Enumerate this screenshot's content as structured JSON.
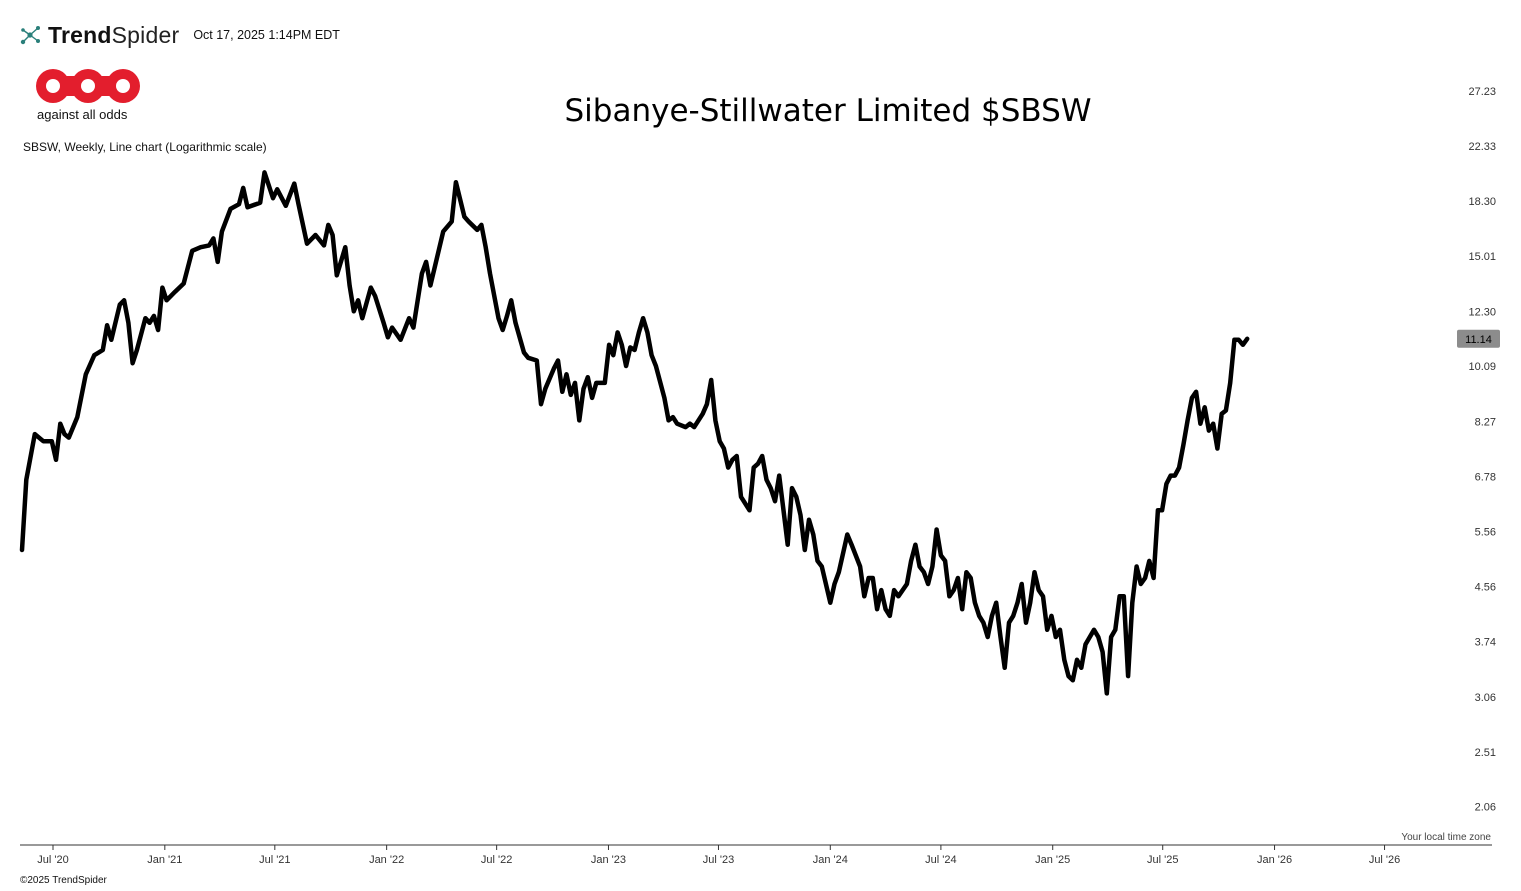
{
  "header": {
    "brand_bold": "Trend",
    "brand_light": "Spider",
    "timestamp": "Oct 17, 2025 1:14PM EDT"
  },
  "logo": {
    "tagline": "against all odds"
  },
  "chart_desc": "SBSW, Weekly, Line chart (Logarithmic scale)",
  "timezone_note": "Your local time zone",
  "copyright": "©2025 TrendSpider",
  "colors": {
    "line": "#000000",
    "price_tag": "#8c8c8c",
    "logo_red": "#e31e2d"
  },
  "chart_data": {
    "type": "line",
    "title": "Sibanye-Stillwater Limited $SBSW",
    "yscale": "log",
    "ylim": [
      1.9,
      28
    ],
    "y_ticks": [
      "27.23",
      "22.33",
      "18.30",
      "15.01",
      "12.30",
      "10.09",
      "8.27",
      "6.78",
      "5.56",
      "4.56",
      "3.74",
      "3.06",
      "2.51",
      "2.06"
    ],
    "x_range": [
      "2020-05-11",
      "2026-09-01"
    ],
    "x_ticks": [
      {
        "label": "Jul '20",
        "date": "2020-07-01"
      },
      {
        "label": "Jan '21",
        "date": "2021-01-01"
      },
      {
        "label": "Jul '21",
        "date": "2021-07-01"
      },
      {
        "label": "Jan '22",
        "date": "2022-01-01"
      },
      {
        "label": "Jul '22",
        "date": "2022-07-01"
      },
      {
        "label": "Jan '23",
        "date": "2023-01-01"
      },
      {
        "label": "Jul '23",
        "date": "2023-07-01"
      },
      {
        "label": "Jan '24",
        "date": "2024-01-01"
      },
      {
        "label": "Jul '24",
        "date": "2024-07-01"
      },
      {
        "label": "Jan '25",
        "date": "2025-01-01"
      },
      {
        "label": "Jul '25",
        "date": "2025-07-01"
      },
      {
        "label": "Jan '26",
        "date": "2026-01-01"
      },
      {
        "label": "Jul '26",
        "date": "2026-07-01"
      }
    ],
    "last_price": "11.14",
    "series": [
      {
        "points": [
          [
            "2020-05-11",
            5.2
          ],
          [
            "2020-05-18",
            6.7
          ],
          [
            "2020-06-01",
            7.9
          ],
          [
            "2020-06-15",
            7.7
          ],
          [
            "2020-06-29",
            7.7
          ],
          [
            "2020-07-06",
            7.2
          ],
          [
            "2020-07-13",
            8.2
          ],
          [
            "2020-07-20",
            7.9
          ],
          [
            "2020-07-27",
            7.8
          ],
          [
            "2020-08-10",
            8.4
          ],
          [
            "2020-08-24",
            9.8
          ],
          [
            "2020-09-07",
            10.5
          ],
          [
            "2020-09-21",
            10.7
          ],
          [
            "2020-09-28",
            11.7
          ],
          [
            "2020-10-05",
            11.1
          ],
          [
            "2020-10-19",
            12.6
          ],
          [
            "2020-10-26",
            12.8
          ],
          [
            "2020-11-02",
            11.8
          ],
          [
            "2020-11-09",
            10.2
          ],
          [
            "2020-11-16",
            10.7
          ],
          [
            "2020-11-30",
            12.0
          ],
          [
            "2020-12-07",
            11.8
          ],
          [
            "2020-12-14",
            12.1
          ],
          [
            "2020-12-21",
            11.5
          ],
          [
            "2020-12-28",
            13.4
          ],
          [
            "2021-01-04",
            12.8
          ],
          [
            "2021-01-18",
            13.2
          ],
          [
            "2021-02-01",
            13.6
          ],
          [
            "2021-02-15",
            15.3
          ],
          [
            "2021-03-01",
            15.5
          ],
          [
            "2021-03-15",
            15.6
          ],
          [
            "2021-03-22",
            16.0
          ],
          [
            "2021-03-29",
            14.7
          ],
          [
            "2021-04-05",
            16.4
          ],
          [
            "2021-04-19",
            17.8
          ],
          [
            "2021-05-03",
            18.1
          ],
          [
            "2021-05-10",
            19.2
          ],
          [
            "2021-05-17",
            17.9
          ],
          [
            "2021-05-31",
            18.1
          ],
          [
            "2021-06-07",
            18.2
          ],
          [
            "2021-06-14",
            20.3
          ],
          [
            "2021-06-28",
            18.5
          ],
          [
            "2021-07-05",
            19.1
          ],
          [
            "2021-07-19",
            18.0
          ],
          [
            "2021-08-02",
            19.5
          ],
          [
            "2021-08-09",
            18.1
          ],
          [
            "2021-08-23",
            15.7
          ],
          [
            "2021-09-06",
            16.2
          ],
          [
            "2021-09-20",
            15.6
          ],
          [
            "2021-09-27",
            16.8
          ],
          [
            "2021-10-04",
            16.2
          ],
          [
            "2021-10-11",
            14.0
          ],
          [
            "2021-10-25",
            15.5
          ],
          [
            "2021-11-01",
            13.5
          ],
          [
            "2021-11-08",
            12.3
          ],
          [
            "2021-11-15",
            12.8
          ],
          [
            "2021-11-22",
            12.0
          ],
          [
            "2021-12-06",
            13.4
          ],
          [
            "2021-12-13",
            13.0
          ],
          [
            "2021-12-27",
            11.8
          ],
          [
            "2022-01-03",
            11.2
          ],
          [
            "2022-01-10",
            11.6
          ],
          [
            "2022-01-24",
            11.1
          ],
          [
            "2022-02-07",
            12.0
          ],
          [
            "2022-02-14",
            11.6
          ],
          [
            "2022-02-28",
            14.1
          ],
          [
            "2022-03-07",
            14.7
          ],
          [
            "2022-03-14",
            13.5
          ],
          [
            "2022-04-04",
            16.4
          ],
          [
            "2022-04-18",
            17.0
          ],
          [
            "2022-04-25",
            19.6
          ],
          [
            "2022-05-09",
            17.3
          ],
          [
            "2022-05-16",
            17.0
          ],
          [
            "2022-05-30",
            16.5
          ],
          [
            "2022-06-06",
            16.8
          ],
          [
            "2022-06-13",
            15.5
          ],
          [
            "2022-06-20",
            14.1
          ],
          [
            "2022-07-04",
            12.0
          ],
          [
            "2022-07-11",
            11.5
          ],
          [
            "2022-07-18",
            12.1
          ],
          [
            "2022-07-25",
            12.8
          ],
          [
            "2022-08-01",
            11.8
          ],
          [
            "2022-08-15",
            10.6
          ],
          [
            "2022-08-22",
            10.4
          ],
          [
            "2022-09-05",
            10.3
          ],
          [
            "2022-09-12",
            8.8
          ],
          [
            "2022-09-19",
            9.3
          ],
          [
            "2022-10-03",
            10.0
          ],
          [
            "2022-10-10",
            10.3
          ],
          [
            "2022-10-17",
            9.2
          ],
          [
            "2022-10-24",
            9.8
          ],
          [
            "2022-10-31",
            9.1
          ],
          [
            "2022-11-07",
            9.5
          ],
          [
            "2022-11-14",
            8.3
          ],
          [
            "2022-11-21",
            9.3
          ],
          [
            "2022-11-28",
            9.7
          ],
          [
            "2022-12-05",
            9.0
          ],
          [
            "2022-12-12",
            9.5
          ],
          [
            "2022-12-26",
            9.5
          ],
          [
            "2023-01-02",
            10.9
          ],
          [
            "2023-01-09",
            10.5
          ],
          [
            "2023-01-16",
            11.4
          ],
          [
            "2023-01-23",
            10.9
          ],
          [
            "2023-01-30",
            10.1
          ],
          [
            "2023-02-06",
            10.8
          ],
          [
            "2023-02-13",
            10.7
          ],
          [
            "2023-02-20",
            11.4
          ],
          [
            "2023-02-27",
            12.0
          ],
          [
            "2023-03-06",
            11.4
          ],
          [
            "2023-03-13",
            10.5
          ],
          [
            "2023-03-20",
            10.1
          ],
          [
            "2023-04-03",
            9.0
          ],
          [
            "2023-04-10",
            8.3
          ],
          [
            "2023-04-17",
            8.4
          ],
          [
            "2023-04-24",
            8.2
          ],
          [
            "2023-05-08",
            8.1
          ],
          [
            "2023-05-15",
            8.2
          ],
          [
            "2023-05-22",
            8.1
          ],
          [
            "2023-06-05",
            8.5
          ],
          [
            "2023-06-12",
            8.8
          ],
          [
            "2023-06-19",
            9.6
          ],
          [
            "2023-06-26",
            8.3
          ],
          [
            "2023-07-03",
            7.7
          ],
          [
            "2023-07-10",
            7.5
          ],
          [
            "2023-07-17",
            7.0
          ],
          [
            "2023-07-24",
            7.2
          ],
          [
            "2023-07-31",
            7.3
          ],
          [
            "2023-08-07",
            6.3
          ],
          [
            "2023-08-21",
            6.0
          ],
          [
            "2023-08-28",
            7.0
          ],
          [
            "2023-09-04",
            7.1
          ],
          [
            "2023-09-11",
            7.3
          ],
          [
            "2023-09-18",
            6.7
          ],
          [
            "2023-09-25",
            6.5
          ],
          [
            "2023-10-02",
            6.2
          ],
          [
            "2023-10-09",
            6.8
          ],
          [
            "2023-10-16",
            6.0
          ],
          [
            "2023-10-23",
            5.3
          ],
          [
            "2023-10-30",
            6.5
          ],
          [
            "2023-11-06",
            6.3
          ],
          [
            "2023-11-13",
            5.9
          ],
          [
            "2023-11-20",
            5.2
          ],
          [
            "2023-11-27",
            5.8
          ],
          [
            "2023-12-04",
            5.5
          ],
          [
            "2023-12-11",
            5.0
          ],
          [
            "2023-12-18",
            4.9
          ],
          [
            "2024-01-01",
            4.3
          ],
          [
            "2024-01-08",
            4.6
          ],
          [
            "2024-01-15",
            4.8
          ],
          [
            "2024-01-29",
            5.5
          ],
          [
            "2024-02-05",
            5.3
          ],
          [
            "2024-02-19",
            4.9
          ],
          [
            "2024-02-26",
            4.4
          ],
          [
            "2024-03-04",
            4.7
          ],
          [
            "2024-03-11",
            4.7
          ],
          [
            "2024-03-18",
            4.2
          ],
          [
            "2024-03-25",
            4.5
          ],
          [
            "2024-04-01",
            4.2
          ],
          [
            "2024-04-08",
            4.1
          ],
          [
            "2024-04-15",
            4.5
          ],
          [
            "2024-04-22",
            4.4
          ],
          [
            "2024-05-06",
            4.6
          ],
          [
            "2024-05-13",
            5.0
          ],
          [
            "2024-05-20",
            5.3
          ],
          [
            "2024-05-27",
            4.9
          ],
          [
            "2024-06-03",
            4.8
          ],
          [
            "2024-06-10",
            4.6
          ],
          [
            "2024-06-17",
            4.9
          ],
          [
            "2024-06-24",
            5.6
          ],
          [
            "2024-07-01",
            5.1
          ],
          [
            "2024-07-08",
            5.0
          ],
          [
            "2024-07-15",
            4.4
          ],
          [
            "2024-07-22",
            4.5
          ],
          [
            "2024-07-29",
            4.7
          ],
          [
            "2024-08-05",
            4.2
          ],
          [
            "2024-08-12",
            4.8
          ],
          [
            "2024-08-19",
            4.7
          ],
          [
            "2024-08-26",
            4.3
          ],
          [
            "2024-09-02",
            4.1
          ],
          [
            "2024-09-09",
            4.0
          ],
          [
            "2024-09-16",
            3.8
          ],
          [
            "2024-09-23",
            4.1
          ],
          [
            "2024-09-30",
            4.3
          ],
          [
            "2024-10-07",
            3.8
          ],
          [
            "2024-10-14",
            3.4
          ],
          [
            "2024-10-21",
            4.0
          ],
          [
            "2024-10-28",
            4.1
          ],
          [
            "2024-11-04",
            4.3
          ],
          [
            "2024-11-11",
            4.6
          ],
          [
            "2024-11-18",
            4.0
          ],
          [
            "2024-11-25",
            4.3
          ],
          [
            "2024-12-02",
            4.8
          ],
          [
            "2024-12-09",
            4.5
          ],
          [
            "2024-12-16",
            4.4
          ],
          [
            "2024-12-23",
            3.9
          ],
          [
            "2024-12-30",
            4.1
          ],
          [
            "2025-01-06",
            3.8
          ],
          [
            "2025-01-13",
            3.9
          ],
          [
            "2025-01-20",
            3.5
          ],
          [
            "2025-01-27",
            3.3
          ],
          [
            "2025-02-03",
            3.25
          ],
          [
            "2025-02-10",
            3.5
          ],
          [
            "2025-02-17",
            3.4
          ],
          [
            "2025-02-24",
            3.7
          ],
          [
            "2025-03-03",
            3.8
          ],
          [
            "2025-03-10",
            3.9
          ],
          [
            "2025-03-17",
            3.8
          ],
          [
            "2025-03-24",
            3.6
          ],
          [
            "2025-03-31",
            3.1
          ],
          [
            "2025-04-07",
            3.8
          ],
          [
            "2025-04-14",
            3.9
          ],
          [
            "2025-04-21",
            4.4
          ],
          [
            "2025-04-28",
            4.4
          ],
          [
            "2025-05-05",
            3.3
          ],
          [
            "2025-05-12",
            4.3
          ],
          [
            "2025-05-19",
            4.9
          ],
          [
            "2025-05-26",
            4.6
          ],
          [
            "2025-06-02",
            4.7
          ],
          [
            "2025-06-09",
            5.0
          ],
          [
            "2025-06-16",
            4.7
          ],
          [
            "2025-06-23",
            6.0
          ],
          [
            "2025-06-30",
            6.0
          ],
          [
            "2025-07-07",
            6.6
          ],
          [
            "2025-07-14",
            6.8
          ],
          [
            "2025-07-21",
            6.8
          ],
          [
            "2025-07-28",
            7.0
          ],
          [
            "2025-08-04",
            7.6
          ],
          [
            "2025-08-11",
            8.3
          ],
          [
            "2025-08-18",
            9.0
          ],
          [
            "2025-08-25",
            9.2
          ],
          [
            "2025-09-01",
            8.2
          ],
          [
            "2025-09-08",
            8.7
          ],
          [
            "2025-09-15",
            8.0
          ],
          [
            "2025-09-22",
            8.2
          ],
          [
            "2025-09-29",
            7.5
          ],
          [
            "2025-10-06",
            8.5
          ],
          [
            "2025-10-13",
            8.6
          ],
          [
            "2025-10-20",
            9.5
          ],
          [
            "2025-10-27",
            11.1
          ],
          [
            "2025-11-03",
            11.1
          ],
          [
            "2025-11-10",
            10.9
          ],
          [
            "2025-11-17",
            11.14
          ]
        ]
      }
    ]
  }
}
